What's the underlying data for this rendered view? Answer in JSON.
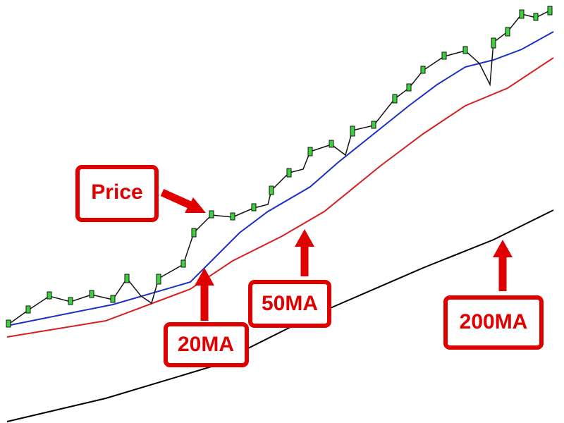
{
  "annotations": {
    "price": "Price",
    "ma20": "20MA",
    "ma50": "50MA",
    "ma200": "200MA"
  }
}
